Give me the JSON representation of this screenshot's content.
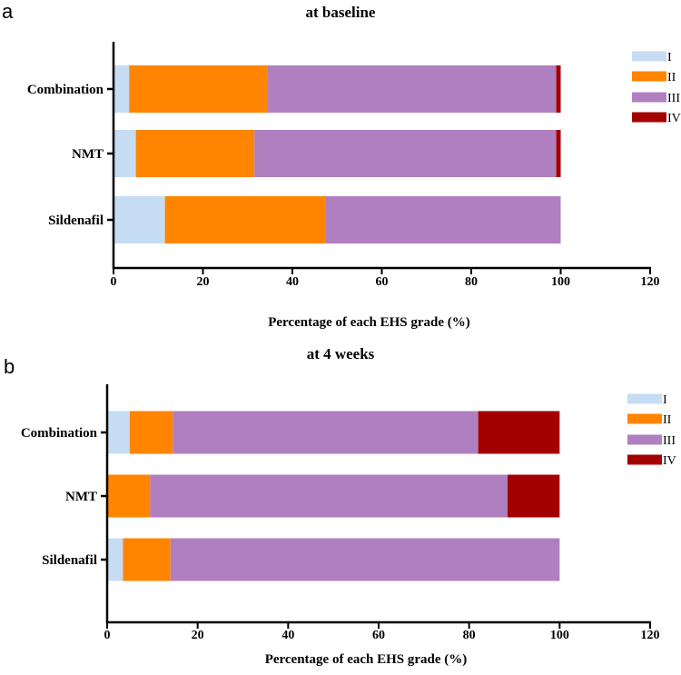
{
  "figure": {
    "panels": [
      {
        "letter": "a"
      },
      {
        "letter": "b"
      }
    ]
  },
  "colors": {
    "I": "#c6dcf3",
    "II": "#ff8400",
    "III": "#b07fc0",
    "IV": "#a30000",
    "axis": "#000000"
  },
  "chart_data": [
    {
      "type": "bar",
      "orientation": "horizontal",
      "stacked": true,
      "title": "at baseline",
      "xlabel": "Percentage of each EHS grade (%)",
      "ylabel": "",
      "xlim": [
        0,
        120
      ],
      "xticks": [
        0,
        20,
        40,
        60,
        80,
        100,
        120
      ],
      "categories": [
        "Combination",
        "NMT",
        "Sildenafil"
      ],
      "legend": {
        "position": "top-right",
        "entries": [
          "I",
          "II",
          "III",
          "IV"
        ]
      },
      "series": [
        {
          "name": "I",
          "values": [
            3.5,
            5,
            11.5
          ]
        },
        {
          "name": "II",
          "values": [
            31,
            26.5,
            36
          ]
        },
        {
          "name": "III",
          "values": [
            64.5,
            67.5,
            52.5
          ]
        },
        {
          "name": "IV",
          "values": [
            1,
            1,
            0
          ]
        }
      ]
    },
    {
      "type": "bar",
      "orientation": "horizontal",
      "stacked": true,
      "title": "at 4 weeks",
      "xlabel": "Percentage of each EHS grade (%)",
      "ylabel": "",
      "xlim": [
        0,
        120
      ],
      "xticks": [
        0,
        20,
        40,
        60,
        80,
        100,
        120
      ],
      "categories": [
        "Combination",
        "NMT",
        "Sildenafil"
      ],
      "legend": {
        "position": "top-right",
        "entries": [
          "I",
          "II",
          "III",
          "IV"
        ]
      },
      "series": [
        {
          "name": "I",
          "values": [
            5,
            0,
            3.5
          ]
        },
        {
          "name": "II",
          "values": [
            9.5,
            9.5,
            10.5
          ]
        },
        {
          "name": "III",
          "values": [
            67.5,
            79,
            86
          ]
        },
        {
          "name": "IV",
          "values": [
            18,
            11.5,
            0
          ]
        }
      ]
    }
  ]
}
